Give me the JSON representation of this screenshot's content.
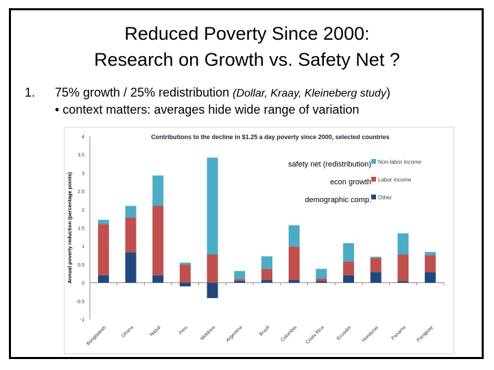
{
  "slide": {
    "title_line1": "Reduced Poverty Since 2000:",
    "title_line2": "Research on Growth vs. Safety Net ?",
    "bullet1_number": "1.",
    "bullet1_text": "75% growth / 25% redistribution ",
    "bullet1_italic": "(Dollar, Kraay, Kleineberg study",
    "bullet1_close": ")",
    "bullet2_text": "• context matters:  averages hide wide range of variation",
    "annotations": [
      "safety net (redistribution)",
      "econ growth",
      "demographic comp."
    ]
  },
  "chart_data": {
    "type": "bar",
    "stacked": true,
    "title": "Contributions to the decline in $1.25 a day poverty since 2000, selected countries",
    "ylabel": "Annual poverty reduction (percentage points)",
    "xlabel": "",
    "ylim": [
      -1,
      4
    ],
    "yticks": [
      "4",
      "3.5",
      "3",
      "2.5",
      "2",
      "1.5",
      "1",
      "0.5",
      "0",
      "-0.5",
      "-1"
    ],
    "grid": false,
    "legend_position": "top-right",
    "categories": [
      "Bangladesh",
      "Ghana",
      "Nepal",
      "Peru",
      "Moldova",
      "Argentina",
      "Brazil",
      "Colombia",
      "Costa Rica",
      "Ecuador",
      "Honduras",
      "Panama",
      "Paraguay"
    ],
    "series": [
      {
        "name": "Other",
        "color": "#1f497d",
        "values": [
          0.2,
          0.83,
          0.2,
          -0.1,
          -0.42,
          0.05,
          0.08,
          0.08,
          0.04,
          0.2,
          0.29,
          0.04,
          0.29
        ]
      },
      {
        "name": "Labor income",
        "color": "#c0504d",
        "values": [
          1.4,
          0.95,
          1.9,
          0.5,
          0.77,
          0.05,
          0.3,
          0.91,
          0.08,
          0.38,
          0.39,
          0.73,
          0.46
        ]
      },
      {
        "name": "Non-labor income",
        "color": "#4bacc6",
        "values": [
          0.12,
          0.32,
          0.83,
          0.05,
          2.65,
          0.22,
          0.34,
          0.58,
          0.26,
          0.5,
          0.03,
          0.58,
          0.09
        ]
      }
    ]
  }
}
